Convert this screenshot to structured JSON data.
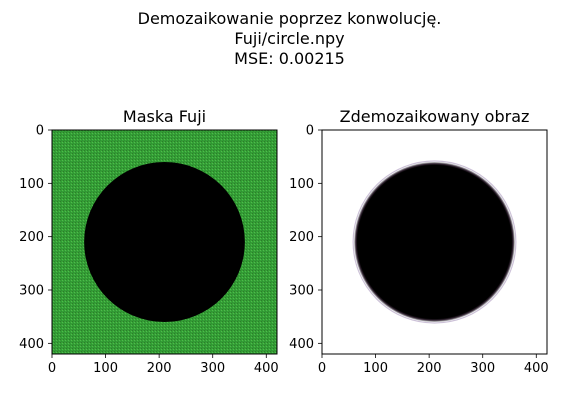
{
  "suptitle_lines": [
    "Demozaikowanie poprzez konwolucję.",
    "Fuji/circle.npy",
    "MSE: 0.00215"
  ],
  "chart_data": [
    {
      "type": "heatmap",
      "title": "Maska Fuji",
      "xlim": [
        0,
        420
      ],
      "ylim": [
        420,
        0
      ],
      "xticks": [
        0,
        100,
        200,
        300,
        400
      ],
      "yticks": [
        0,
        100,
        200,
        300,
        400
      ],
      "xticklabels": [
        "0",
        "100",
        "200",
        "300",
        "400"
      ],
      "yticklabels": [
        "0",
        "100",
        "200",
        "300",
        "400"
      ],
      "background_color": "#38a038",
      "circle": {
        "cx": 210,
        "cy": 210,
        "r": 150,
        "color": "#000000"
      }
    },
    {
      "type": "heatmap",
      "title": "Zdemozaikowany obraz",
      "xlim": [
        0,
        420
      ],
      "ylim": [
        420,
        0
      ],
      "xticks": [
        0,
        100,
        200,
        300,
        400
      ],
      "yticks": [
        0,
        100,
        200,
        300,
        400
      ],
      "xticklabels": [
        "0",
        "100",
        "200",
        "300",
        "400"
      ],
      "yticklabels": [
        "0",
        "100",
        "200",
        "300",
        "400"
      ],
      "background_color": "#ffffff",
      "circle": {
        "cx": 210,
        "cy": 210,
        "r": 150,
        "color": "#000000"
      }
    }
  ]
}
